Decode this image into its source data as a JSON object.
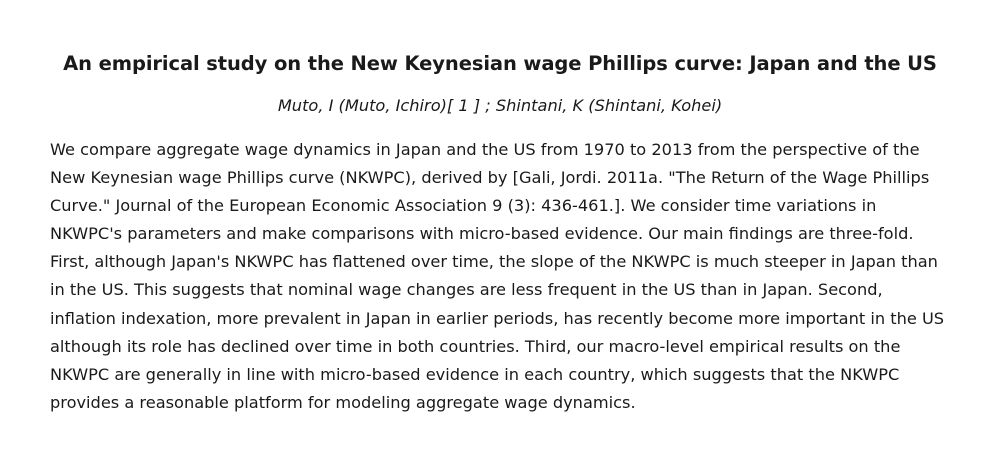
{
  "article": {
    "title": "An empirical study on the New Keynesian wage Phillips curve: Japan and the US",
    "authors": "Muto, I (Muto, Ichiro)[ 1 ] ; Shintani, K (Shintani, Kohei)",
    "abstract": "We compare aggregate wage dynamics in Japan and the US from 1970 to 2013 from the perspective of the New Keynesian wage Phillips curve (NKWPC), derived by [Gali, Jordi. 2011a. \"The Return of the Wage Phillips Curve.\" Journal of the European Economic Association 9 (3): 436-461.]. We consider time variations in NKWPC's parameters and make comparisons with micro-based evidence. Our main findings are three-fold. First, although Japan's NKWPC has flattened over time, the slope of the NKWPC is much steeper in Japan than in the US. This suggests that nominal wage changes are less frequent in the US than in Japan. Second, inflation indexation, more prevalent in Japan in earlier periods, has recently become more important in the US although its role has declined over time in both countries. Third, our macro-level empirical results on the NKWPC are generally in line with micro-based evidence in each country, which suggests that the NKWPC provides a reasonable platform for modeling aggregate wage dynamics."
  }
}
